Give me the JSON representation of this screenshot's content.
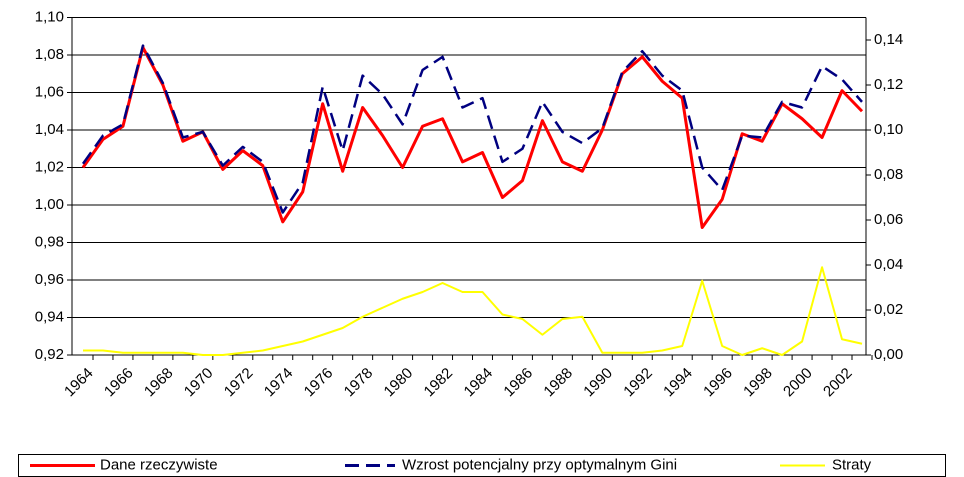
{
  "chart_data": {
    "type": "line",
    "categories": [
      "1964",
      null,
      "1966",
      null,
      "1968",
      null,
      "1970",
      null,
      "1972",
      null,
      "1974",
      null,
      "1976",
      null,
      "1978",
      null,
      "1980",
      null,
      "1982",
      null,
      "1984",
      null,
      "1986",
      null,
      "1988",
      null,
      "1990",
      null,
      "1992",
      null,
      "1994",
      null,
      "1996",
      null,
      "1998",
      null,
      "2000",
      null,
      "2002",
      null
    ],
    "series": [
      {
        "name": "Dane rzeczywiste",
        "color": "#ff0000",
        "dash": "solid",
        "values": [
          1.02,
          1.035,
          1.042,
          1.084,
          1.064,
          1.034,
          1.039,
          1.019,
          1.029,
          1.021,
          0.991,
          1.007,
          1.054,
          1.018,
          1.052,
          1.037,
          1.02,
          1.042,
          1.046,
          1.023,
          1.028,
          1.004,
          1.013,
          1.045,
          1.023,
          1.018,
          1.04,
          1.07,
          1.079,
          1.066,
          1.057,
          0.988,
          1.003,
          1.038,
          1.034,
          1.054,
          1.046,
          1.036,
          1.061,
          1.05
        ]
      },
      {
        "name": "Wzrost potencjalny przy optymalnym Gini",
        "color": "#000080",
        "dash": "dashed",
        "values": [
          1.022,
          1.037,
          1.043,
          1.085,
          1.065,
          1.036,
          1.039,
          1.021,
          1.031,
          1.023,
          0.996,
          1.012,
          1.063,
          1.029,
          1.069,
          1.059,
          1.043,
          1.072,
          1.079,
          1.052,
          1.057,
          1.023,
          1.03,
          1.055,
          1.039,
          1.033,
          1.041,
          1.071,
          1.082,
          1.069,
          1.061,
          1.02,
          1.008,
          1.037,
          1.036,
          1.055,
          1.052,
          1.074,
          1.067,
          1.055
        ]
      },
      {
        "name": "Straty",
        "color": "#ffff00",
        "dash": "solid",
        "axis": "y2",
        "values": [
          0.002,
          0.002,
          0.001,
          0.001,
          0.001,
          0.001,
          0.0,
          0.0,
          0.001,
          0.002,
          0.004,
          0.006,
          0.009,
          0.012,
          0.017,
          0.021,
          0.025,
          0.028,
          0.032,
          0.028,
          0.028,
          0.018,
          0.016,
          0.009,
          0.016,
          0.017,
          0.001,
          0.001,
          0.001,
          0.002,
          0.004,
          0.033,
          0.004,
          0.0,
          0.003,
          0.0,
          0.006,
          0.039,
          0.007,
          0.005
        ]
      }
    ],
    "ylim": [
      0.92,
      1.1
    ],
    "yticks": [
      {
        "value": 0.92,
        "label": "0,92"
      },
      {
        "value": 0.94,
        "label": "0,94"
      },
      {
        "value": 0.96,
        "label": "0,96"
      },
      {
        "value": 0.98,
        "label": "0,98"
      },
      {
        "value": 1.0,
        "label": "1,00"
      },
      {
        "value": 1.02,
        "label": "1,02"
      },
      {
        "value": 1.04,
        "label": "1,04"
      },
      {
        "value": 1.06,
        "label": "1,06"
      },
      {
        "value": 1.08,
        "label": "1,08"
      },
      {
        "value": 1.1,
        "label": "1,10"
      }
    ],
    "y2lim": [
      0,
      0.15
    ],
    "y2ticks": [
      {
        "value": 0,
        "label": "0,00"
      },
      {
        "value": 0.02,
        "label": "0,02"
      },
      {
        "value": 0.04,
        "label": "0,04"
      },
      {
        "value": 0.06,
        "label": "0,06"
      },
      {
        "value": 0.08,
        "label": "0,08"
      },
      {
        "value": 0.1,
        "label": "0,10"
      },
      {
        "value": 0.12,
        "label": "0,12"
      },
      {
        "value": 0.14,
        "label": "0,14"
      }
    ],
    "grid": true,
    "legend": "bottom"
  }
}
